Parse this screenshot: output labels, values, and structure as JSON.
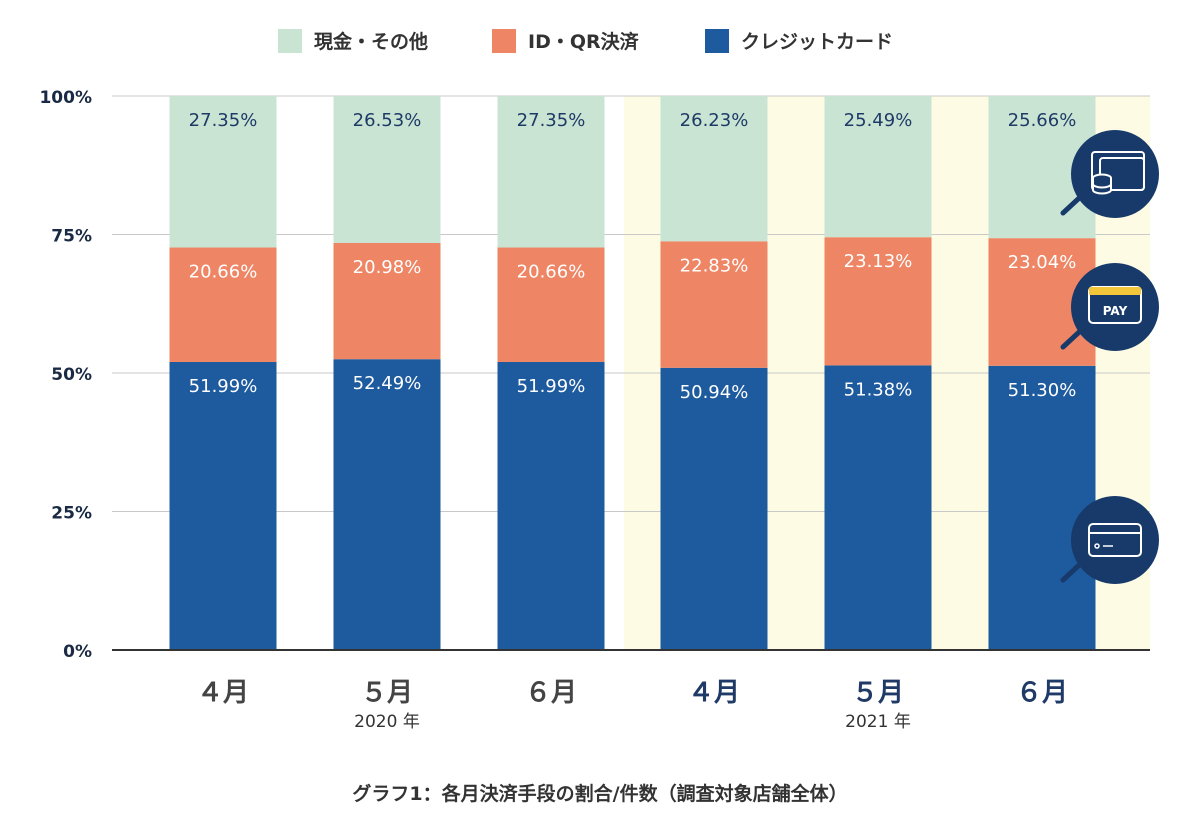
{
  "chart_data": {
    "type": "bar",
    "stacked": true,
    "title": "グラフ1：各月決済手段の割合/件数（調査対象店舗全体）",
    "categories": [
      "４月",
      "５月",
      "６月",
      "４月",
      "５月",
      "６月"
    ],
    "groups": [
      {
        "label": "2020 年",
        "categories": [
          0,
          1,
          2
        ]
      },
      {
        "label": "2021 年",
        "categories": [
          3,
          4,
          5
        ]
      }
    ],
    "series": [
      {
        "name": "クレジットカード",
        "color": "#1d5a9e",
        "values": [
          51.99,
          52.49,
          51.99,
          50.94,
          51.38,
          51.3
        ]
      },
      {
        "name": "ID・QR決済",
        "color": "#ee8565",
        "values": [
          20.66,
          20.98,
          20.66,
          22.83,
          23.13,
          23.04
        ]
      },
      {
        "name": "現金・その他",
        "color": "#c9e4d3",
        "values": [
          27.35,
          26.53,
          27.35,
          26.23,
          25.49,
          25.66
        ]
      }
    ],
    "data_labels": [
      [
        "51.99%",
        "52.49%",
        "51.99%",
        "50.94%",
        "51.38%",
        "51.30%"
      ],
      [
        "20.66%",
        "20.98%",
        "20.66%",
        "22.83%",
        "23.13%",
        "23.04%"
      ],
      [
        "27.35%",
        "26.53%",
        "27.35%",
        "26.23%",
        "25.49%",
        "25.66%"
      ]
    ],
    "ylim": [
      0,
      100
    ],
    "yticks": [
      0,
      25,
      50,
      75,
      100
    ],
    "ytick_labels": [
      "0%",
      "25%",
      "50%",
      "75%",
      "100%"
    ],
    "grid": true,
    "legend_position": "top-center",
    "highlight_group": 1,
    "highlight_color": "#fdfbe3",
    "icons": [
      "cash-card-icon",
      "pay-icon",
      "credit-card-icon"
    ],
    "pay_icon_text": "PAY"
  }
}
